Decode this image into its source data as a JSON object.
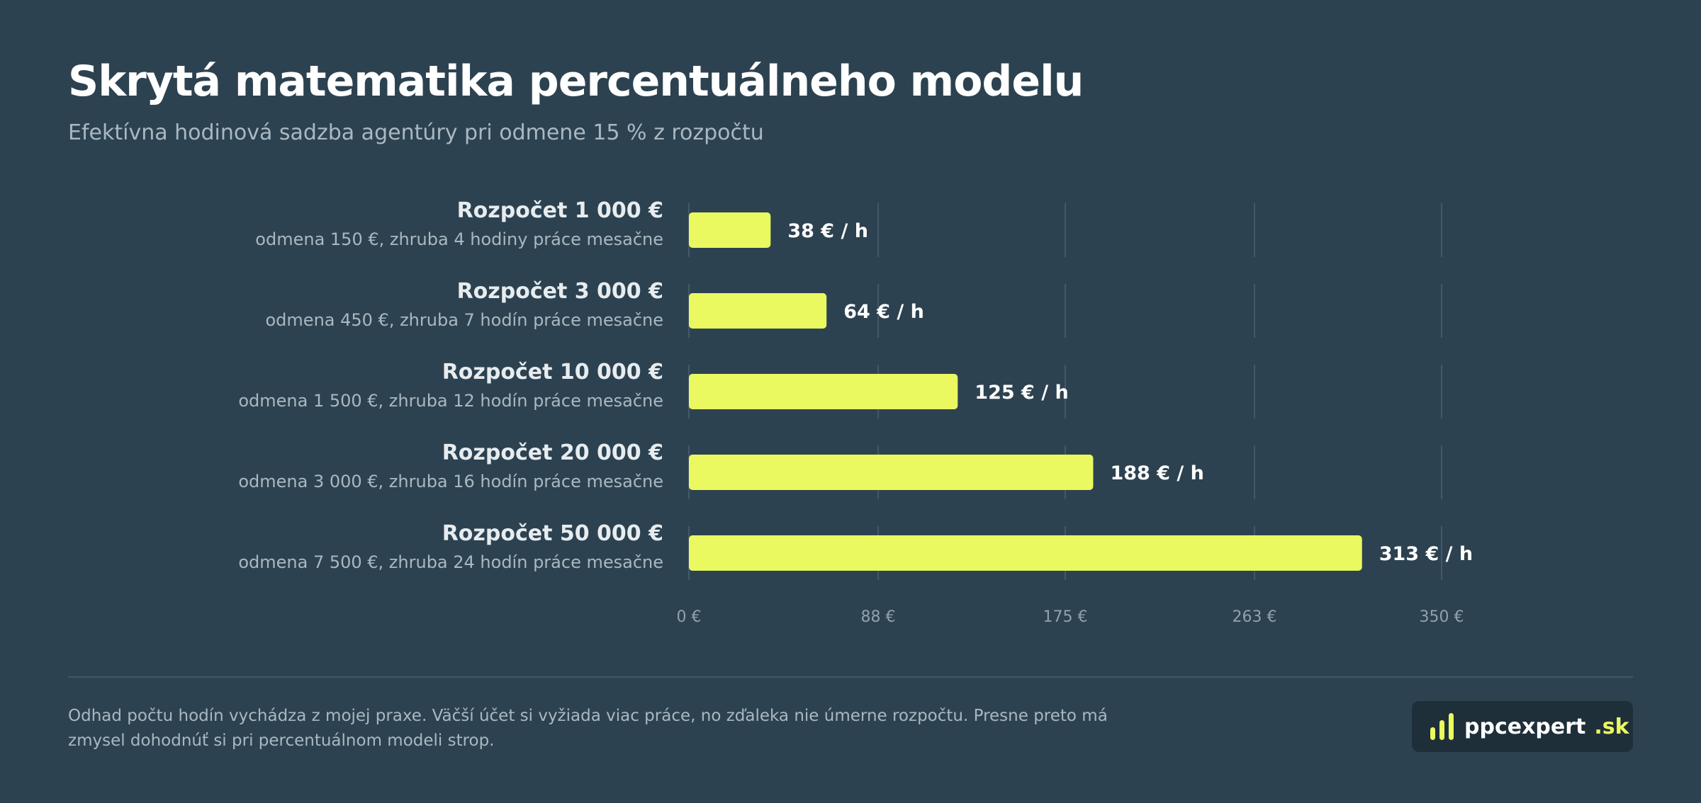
{
  "header": {
    "title": "Skrytá matematika percentuálneho modelu",
    "subtitle": "Efektívna hodinová sadzba agentúry pri odmene 15 % z rozpočtu"
  },
  "chart_data": {
    "type": "bar",
    "orientation": "horizontal",
    "categories": [
      "Rozpočet 1 000 €",
      "Rozpočet 3 000 €",
      "Rozpočet 10 000 €",
      "Rozpočet 20 000 €",
      "Rozpočet 50 000 €"
    ],
    "category_notes": [
      "odmena 150 €, zhruba 4 hodiny práce mesačne",
      "odmena 450 €, zhruba 7 hodín práce mesačne",
      "odmena 1 500 €, zhruba 12 hodín práce mesačne",
      "odmena 3 000 €, zhruba 16 hodín práce mesačne",
      "odmena 7 500 €, zhruba 24 hodín práce mesačne"
    ],
    "values": [
      38,
      64,
      125,
      188,
      313
    ],
    "value_labels": [
      "38 € / h",
      "64 € / h",
      "125 € / h",
      "188 € / h",
      "313 € / h"
    ],
    "xlim": [
      0,
      350
    ],
    "x_ticks": [
      0,
      88,
      175,
      263,
      350
    ],
    "x_tick_labels": [
      "0 €",
      "88 €",
      "175 €",
      "263 €",
      "350 €"
    ],
    "grid": true,
    "legend": "none",
    "bar_color": "#eaf95f"
  },
  "footer": {
    "note": "Odhad počtu hodín vychádza z mojej praxe. Väčší účet si vyžiada viac práce, no zďaleka nie úmerne rozpočtu. Presne preto má zmysel dohodnúť si pri percentuálnom modeli strop."
  },
  "logo": {
    "name": "ppcexpert",
    "suffix": ".sk",
    "accent_color": "#eaf95f",
    "icon": "bar-chart-icon"
  }
}
